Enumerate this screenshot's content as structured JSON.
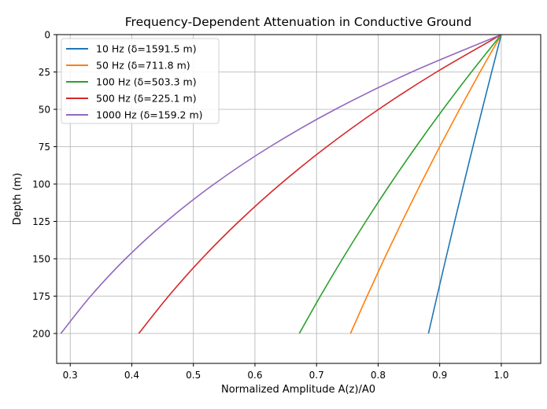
{
  "chart_data": {
    "type": "line",
    "title": "Frequency-Dependent Attenuation in Conductive Ground",
    "xlabel": "Normalized Amplitude A(z)/A0",
    "ylabel": "Depth (m)",
    "xlim": [
      0.278,
      1.064
    ],
    "ylim": [
      220,
      0
    ],
    "y_inverted": true,
    "grid": true,
    "legend": "top-left",
    "xticks": [
      "0.3",
      "0.4",
      "0.5",
      "0.6",
      "0.7",
      "0.8",
      "0.9",
      "1.0"
    ],
    "yticks": [
      "0",
      "25",
      "50",
      "75",
      "100",
      "125",
      "150",
      "175",
      "200"
    ],
    "depth": [
      0,
      25,
      50,
      75,
      100,
      125,
      150,
      175,
      200
    ],
    "series": [
      {
        "name": "10 Hz (δ=1591.5 m)",
        "color": "#1f77b4",
        "amplitude": [
          1,
          0.9844,
          0.969,
          0.9539,
          0.939,
          0.9243,
          0.9099,
          0.8957,
          0.8817
        ]
      },
      {
        "name": "50 Hz (δ=711.8 m)",
        "color": "#ff7f0e",
        "amplitude": [
          1,
          0.9655,
          0.9322,
          0.9,
          0.869,
          0.839,
          0.81,
          0.7821,
          0.7551
        ]
      },
      {
        "name": "100 Hz (δ=503.3 m)",
        "color": "#2ca02c",
        "amplitude": [
          1,
          0.9515,
          0.9054,
          0.8615,
          0.8197,
          0.78,
          0.7422,
          0.7062,
          0.672
        ]
      },
      {
        "name": "500 Hz (δ=225.1 m)",
        "color": "#d62728",
        "amplitude": [
          1,
          0.8949,
          0.8008,
          0.7167,
          0.6414,
          0.574,
          0.5136,
          0.4597,
          0.4113
        ]
      },
      {
        "name": "1000 Hz (δ=159.2 m)",
        "color": "#9467bd",
        "amplitude": [
          1,
          0.8547,
          0.7305,
          0.6244,
          0.5337,
          0.4561,
          0.3898,
          0.3332,
          0.2848
        ]
      }
    ]
  }
}
